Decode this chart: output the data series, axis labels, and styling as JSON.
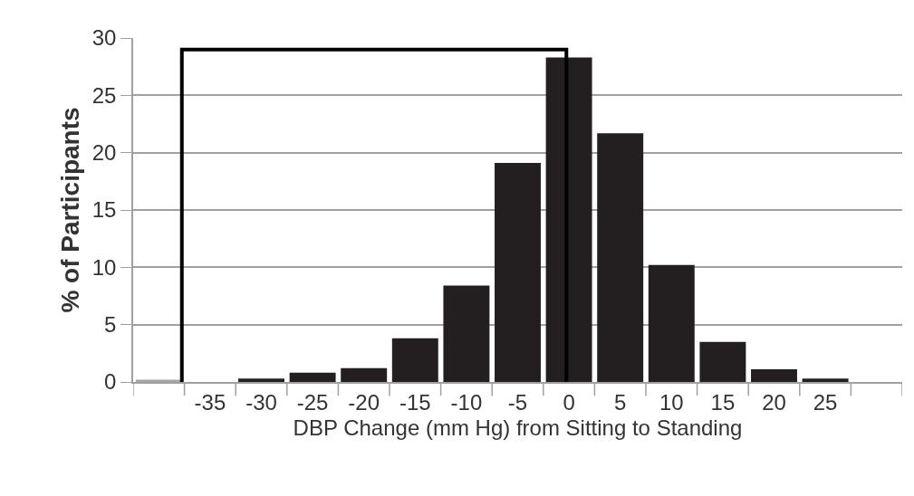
{
  "chart_data": {
    "type": "bar",
    "xlabel": "DBP Change (mm Hg) from Sitting to Standing",
    "ylabel": "% of Participants",
    "categories": [
      null,
      "-35",
      "-30",
      "-25",
      "-20",
      "-15",
      "-10",
      "-5",
      "0",
      "5",
      "10",
      "15",
      "20",
      "25",
      null
    ],
    "values": [
      0.2,
      0,
      0.3,
      0.8,
      1.2,
      3.8,
      8.4,
      19.1,
      28.3,
      21.7,
      10.2,
      3.5,
      1.1,
      0.3,
      0
    ],
    "colors": [
      "#a6a6a6",
      "#231f20",
      "#231f20",
      "#231f20",
      "#231f20",
      "#231f20",
      "#231f20",
      "#231f20",
      "#231f20",
      "#231f20",
      "#231f20",
      "#231f20",
      "#231f20",
      "#231f20",
      "#231f20"
    ],
    "ylim": [
      0,
      30
    ],
    "yticks": [
      0,
      5,
      10,
      15,
      20,
      25,
      30
    ],
    "grid": "y"
  }
}
